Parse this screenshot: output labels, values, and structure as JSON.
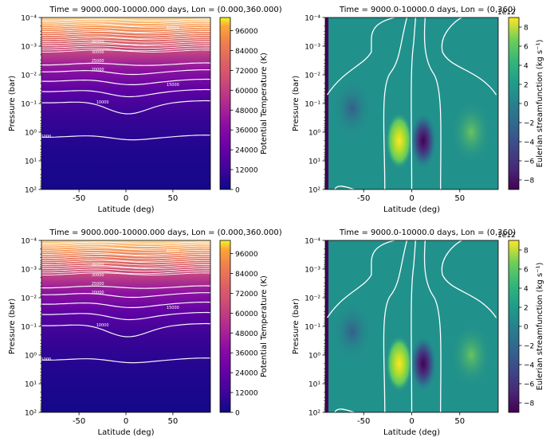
{
  "chart_data": [
    {
      "type": "heatmap",
      "title": "Time = 9000.000-10000.000 days, Lon = (0.000,360.000)",
      "xlabel": "Latitude (deg)",
      "ylabel": "Pressure (bar)",
      "xlim": [
        -90,
        90
      ],
      "ylim": [
        0.0001,
        100.0
      ],
      "y_scale": "log",
      "x_ticks": [
        "-50",
        "0",
        "50"
      ],
      "y_ticks": [
        "10⁻⁴",
        "10⁻³",
        "10⁻²",
        "10⁻¹",
        "10⁰",
        "10¹",
        "10²"
      ],
      "colorbar_label": "Potential Temperature (K)",
      "colorbar_ticks": [
        "0",
        "12000",
        "24000",
        "36000",
        "48000",
        "60000",
        "72000",
        "84000",
        "96000"
      ],
      "colorbar_range": [
        0,
        104000
      ],
      "colormap": "plasma",
      "contour_labels": [
        "60000",
        "35000",
        "30000",
        "25000",
        "20000",
        "15000",
        "10000",
        "5000"
      ]
    },
    {
      "type": "heatmap",
      "title": "Time = 9000.0-10000.0 days, Lon = (0,360)",
      "xlabel": "Latitude (deg)",
      "ylabel": "Pressure (bar)",
      "xlim": [
        -90,
        90
      ],
      "ylim": [
        0.0001,
        100.0
      ],
      "y_scale": "log",
      "x_ticks": [
        "-50",
        "0",
        "50"
      ],
      "y_ticks": [
        "10⁻⁴",
        "10⁻³",
        "10⁻²",
        "10⁻¹",
        "10⁰",
        "10¹",
        "10²"
      ],
      "colorbar_label": "Eulerian streamfunction (kg s⁻¹)",
      "colorbar_ticks": [
        "8",
        "6",
        "4",
        "2",
        "0",
        "−2",
        "−4",
        "−6",
        "−8"
      ],
      "colorbar_multiplier": "1e12",
      "colorbar_range": [
        -9,
        9
      ],
      "colormap": "viridis",
      "extrema": [
        {
          "label": "max",
          "lat": -13,
          "pressure": 2,
          "value": 9
        },
        {
          "label": "min",
          "lat": 12,
          "pressure": 2,
          "value": -9
        }
      ]
    },
    {
      "type": "heatmap",
      "title": "Time = 9000.000-10000.000 days, Lon = (0.000,360.000)",
      "xlabel": "Latitude (deg)",
      "ylabel": "Pressure (bar)",
      "xlim": [
        -90,
        90
      ],
      "ylim": [
        0.0001,
        100.0
      ],
      "y_scale": "log",
      "x_ticks": [
        "-50",
        "0",
        "50"
      ],
      "y_ticks": [
        "10⁻⁴",
        "10⁻³",
        "10⁻²",
        "10⁻¹",
        "10⁰",
        "10¹",
        "10²"
      ],
      "colorbar_label": "Potential Temperature (K)",
      "colorbar_ticks": [
        "0",
        "12000",
        "24000",
        "36000",
        "48000",
        "60000",
        "72000",
        "84000",
        "96000"
      ],
      "colorbar_range": [
        0,
        104000
      ],
      "colormap": "plasma",
      "contour_labels": [
        "60000",
        "35000",
        "30000",
        "25000",
        "20000",
        "15000",
        "10000",
        "5000"
      ]
    },
    {
      "type": "heatmap",
      "title": "Time = 9000.0-10000.0 days, Lon = (0,360)",
      "xlabel": "Latitude (deg)",
      "ylabel": "Pressure (bar)",
      "xlim": [
        -90,
        90
      ],
      "ylim": [
        0.0001,
        100.0
      ],
      "y_scale": "log",
      "x_ticks": [
        "-50",
        "0",
        "50"
      ],
      "y_ticks": [
        "10⁻⁴",
        "10⁻³",
        "10⁻²",
        "10⁻¹",
        "10⁰",
        "10¹",
        "10²"
      ],
      "colorbar_label": "Eulerian streamfunction (kg s⁻¹)",
      "colorbar_ticks": [
        "8",
        "6",
        "4",
        "2",
        "0",
        "−2",
        "−4",
        "−6",
        "−8"
      ],
      "colorbar_multiplier": "1e12",
      "colorbar_range": [
        -9,
        9
      ],
      "colormap": "viridis",
      "extrema": [
        {
          "label": "max",
          "lat": -13,
          "pressure": 2,
          "value": 9
        },
        {
          "label": "min",
          "lat": 12,
          "pressure": 2,
          "value": -9
        }
      ]
    }
  ]
}
